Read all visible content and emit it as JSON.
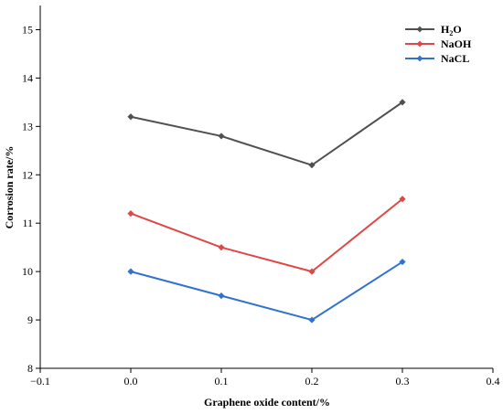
{
  "chart_data": {
    "type": "line",
    "title": "",
    "xlabel": "Graphene oxide content/%",
    "ylabel": "Corrosion rate/%",
    "xlim": [
      -0.1,
      0.4
    ],
    "ylim": [
      8,
      15.5
    ],
    "xticks": [
      -0.1,
      0.0,
      0.1,
      0.2,
      0.3,
      0.4
    ],
    "xtick_labels": [
      "−0.1",
      "0.0",
      "0.1",
      "0.2",
      "0.3",
      "0.4"
    ],
    "yticks": [
      8,
      9,
      10,
      11,
      12,
      13,
      14,
      15
    ],
    "ytick_labels": [
      "8",
      "9",
      "10",
      "11",
      "12",
      "13",
      "14",
      "15"
    ],
    "grid": false,
    "legend_position": "top-right",
    "x": [
      0.0,
      0.1,
      0.2,
      0.3
    ],
    "series": [
      {
        "name": "H₂O",
        "name_main": "H",
        "name_sub": "2",
        "name_tail": "O",
        "color": "#505050",
        "values": [
          13.2,
          12.8,
          12.2,
          13.5
        ]
      },
      {
        "name": "NaOH",
        "color": "#e04646",
        "values": [
          11.2,
          10.5,
          10.0,
          11.5
        ]
      },
      {
        "name": "NaCL",
        "color": "#2f72d0",
        "values": [
          10.0,
          9.5,
          9.0,
          10.2
        ]
      }
    ]
  }
}
